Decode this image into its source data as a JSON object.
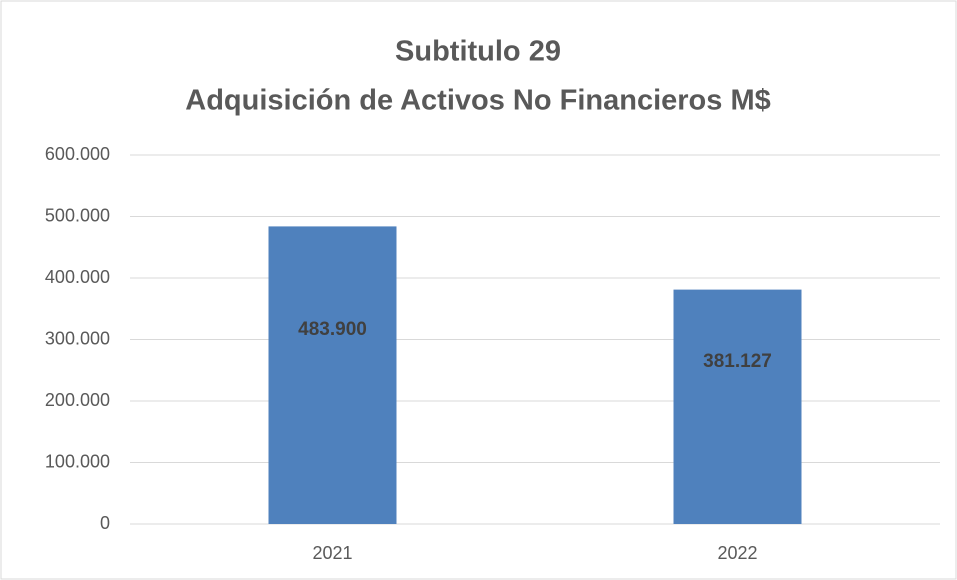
{
  "chart_data": {
    "type": "bar",
    "title": [
      "Subtitulo 29",
      "Adquisición de Activos No Financieros M$"
    ],
    "categories": [
      "2021",
      "2022"
    ],
    "values": [
      483900,
      381127
    ],
    "value_labels": [
      "483.900",
      "381.127"
    ],
    "color": "#4f81bd",
    "ylim": [
      0,
      600000
    ],
    "yticks": [
      0,
      {
        "value": 100000,
        "label": "100.000"
      },
      {
        "value": 200000,
        "label": "200.000"
      },
      {
        "value": 300000,
        "label": "300.000"
      },
      {
        "value": 400000,
        "label": "400.000"
      },
      {
        "value": 500000,
        "label": "500.000"
      },
      {
        "value": 600000,
        "label": "600.000"
      }
    ],
    "grid": true
  }
}
